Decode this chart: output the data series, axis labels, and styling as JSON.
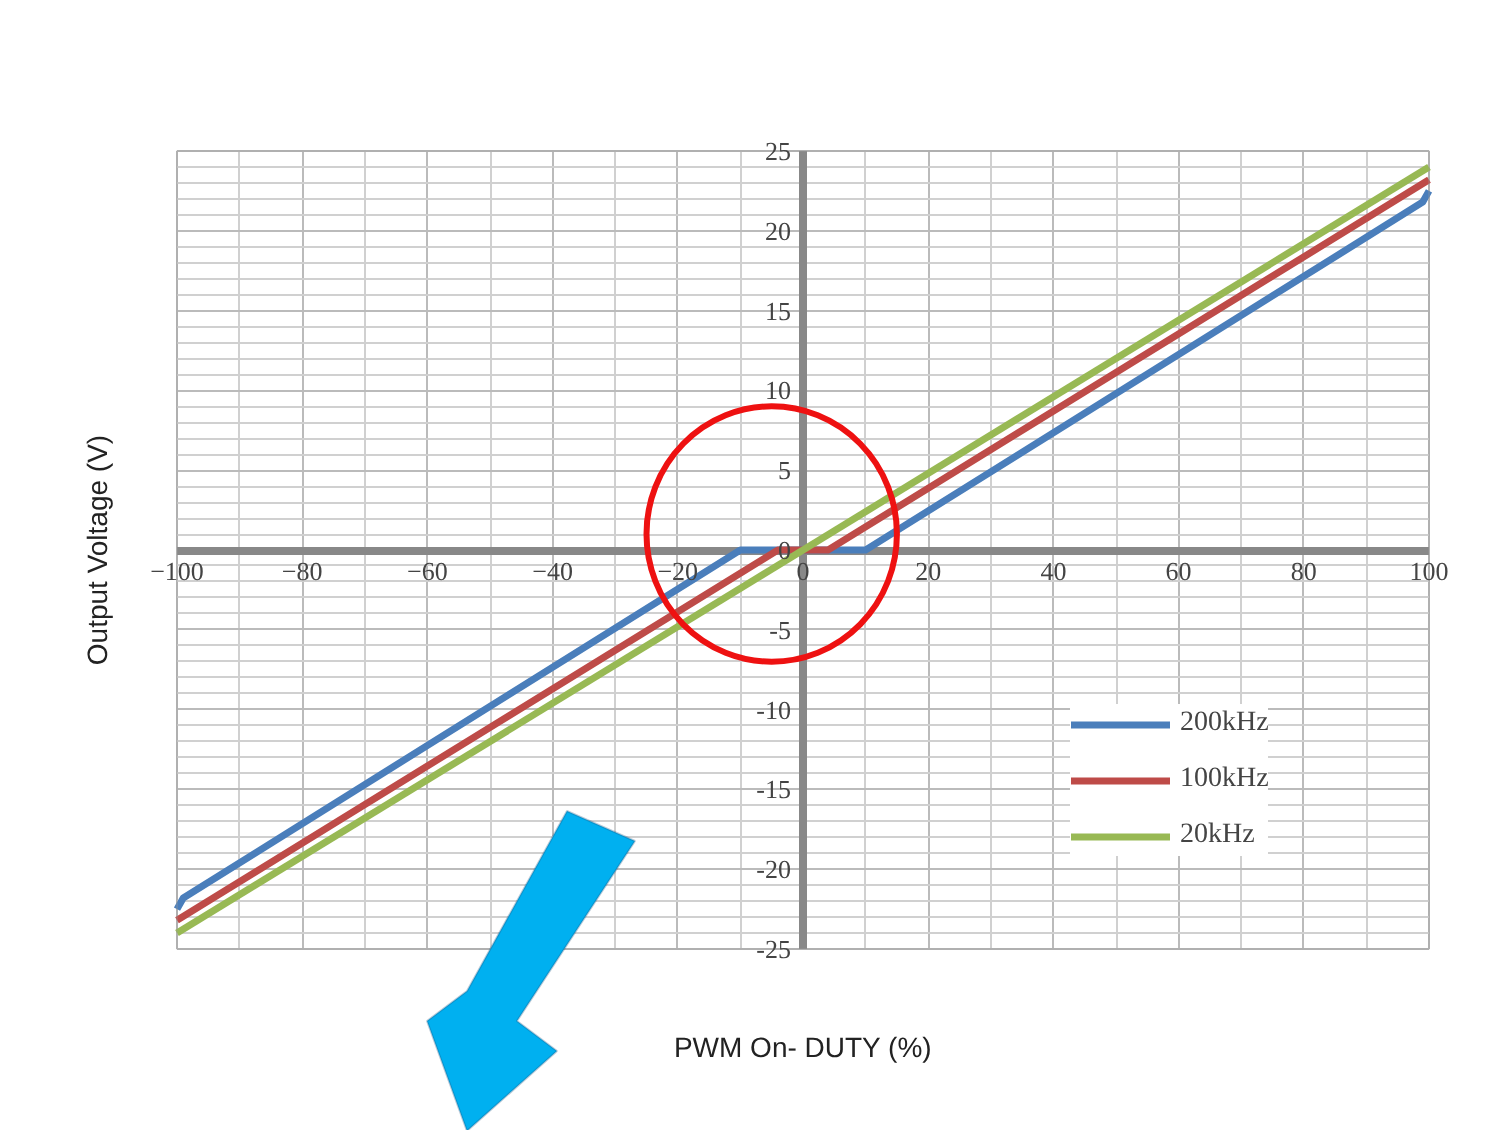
{
  "chart_data": {
    "type": "line",
    "xlabel": "PWM On- DUTY (%)",
    "ylabel": "Output Voltage (V)",
    "xlim": [
      -100,
      100
    ],
    "xticks": [
      -100,
      -80,
      -60,
      -40,
      -20,
      0,
      20,
      40,
      60,
      80,
      100
    ],
    "ylim": [
      -25,
      25
    ],
    "yticks": [
      {
        "value": -25,
        "label": "-25"
      },
      {
        "value": -20,
        "label": "-20"
      },
      {
        "value": -15,
        "label": "-15"
      },
      {
        "value": -10,
        "label": "-10"
      },
      {
        "value": -5,
        "label": "-5"
      },
      0,
      5,
      10,
      15,
      20,
      25
    ],
    "grid": true,
    "legend": "bottom right",
    "marker": "none",
    "line_style": "solid",
    "series": [
      {
        "name": "200kHz",
        "color": "#4a7ebb",
        "x": [
          -100,
          -99,
          -10,
          10,
          99,
          100
        ],
        "values": [
          -22.5,
          -21.8,
          0,
          0,
          21.8,
          22.5
        ]
      },
      {
        "name": "100kHz",
        "color": "#be4b48",
        "x": [
          -100,
          -4,
          4,
          100
        ],
        "values": [
          -23.2,
          0,
          0,
          23.2
        ]
      },
      {
        "name": "20kHz",
        "color": "#98b954",
        "x": [
          -100,
          100
        ],
        "values": [
          -24,
          24
        ]
      }
    ]
  }
}
